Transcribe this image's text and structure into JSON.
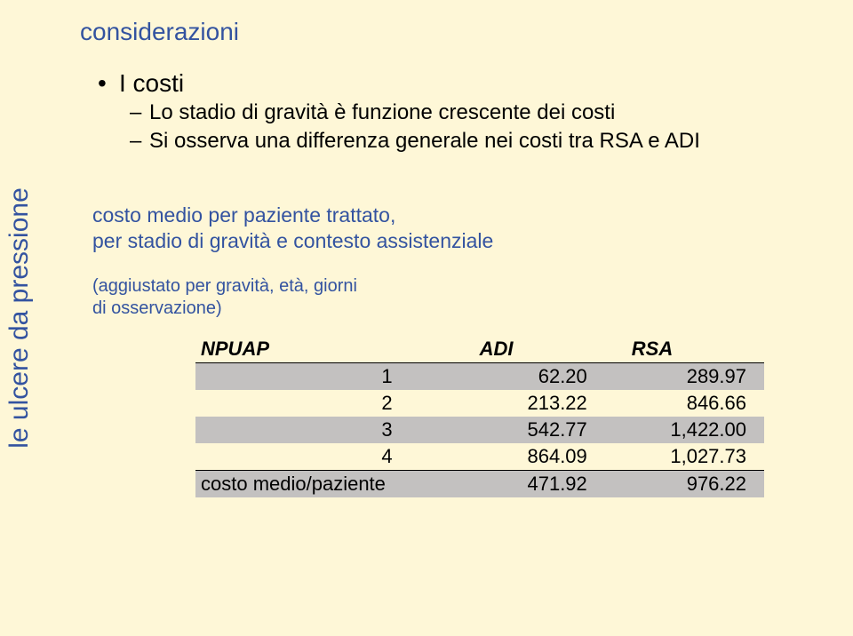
{
  "colors": {
    "background": "#fef7d7",
    "heading": "#3353a0",
    "sidebar": "#3353a0",
    "body_text": "#000000",
    "band_odd": "#c3c1c0",
    "band_even": "#fef7d7"
  },
  "sidebar_label": "le ulcere da pressione",
  "title": "considerazioni",
  "bullet_l1": "I costi",
  "bullet_l2a": "Lo stadio di gravità è funzione crescente dei costi",
  "bullet_l2b": "Si osserva una differenza generale nei costi tra RSA e ADI",
  "subhead_line1": "costo medio per paziente trattato,",
  "subhead_line2": "per stadio di gravità e contesto assistenziale",
  "subnote_line1": "(aggiustato per gravità, età, giorni",
  "subnote_line2": "di osservazione)",
  "table": {
    "columns": [
      "NPUAP",
      "ADI",
      "RSA"
    ],
    "rows": [
      [
        "1",
        "62.20",
        "289.97"
      ],
      [
        "2",
        "213.22",
        "846.66"
      ],
      [
        "3",
        "542.77",
        "1,422.00"
      ],
      [
        "4",
        "864.09",
        "1,027.73"
      ]
    ],
    "footer": [
      "costo medio/paziente",
      "471.92",
      "976.22"
    ]
  }
}
